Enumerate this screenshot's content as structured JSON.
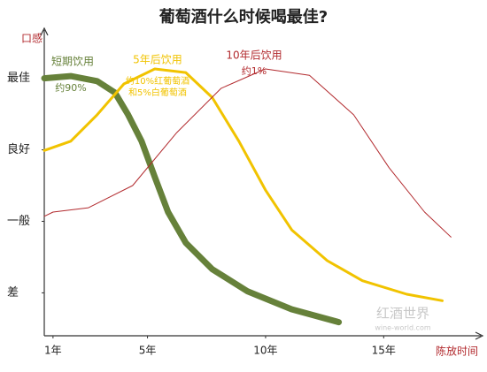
{
  "chart_data": {
    "type": "line",
    "title": "葡萄酒什么时候喝最佳?",
    "y_label": "口感",
    "x_label": "陈放时间",
    "watermark": "红酒世界",
    "watermark_url": "wine-world.com",
    "xlim": [
      0.63,
      19
    ],
    "xticks": [
      {
        "value": 1,
        "label": "1年"
      },
      {
        "value": 5,
        "label": "5年"
      },
      {
        "value": 10,
        "label": "10年"
      },
      {
        "value": 15,
        "label": "15年"
      }
    ],
    "ylim": [
      0.4,
      4.6
    ],
    "yticks": [
      {
        "value": 1,
        "label": "差"
      },
      {
        "value": 2,
        "label": "一般"
      },
      {
        "value": 3,
        "label": "良好"
      },
      {
        "value": 4,
        "label": "最佳"
      }
    ],
    "series": [
      {
        "name": "短期饮用",
        "notes": [
          "约90%"
        ],
        "color": "#66813a",
        "x": [
          0.63,
          1.75,
          2.87,
          3.62,
          4.18,
          4.75,
          5.31,
          5.87,
          6.62,
          7.74,
          9.24,
          11.1,
          13.1
        ],
        "values": [
          4.0,
          4.03,
          3.96,
          3.8,
          3.49,
          3.12,
          2.62,
          2.13,
          1.7,
          1.33,
          1.02,
          0.77,
          0.59
        ]
      },
      {
        "name": "5年后饮用",
        "notes": [
          "约10%红葡萄酒",
          "和5%白葡萄酒"
        ],
        "color": "#f1c300",
        "x": [
          0.63,
          1.75,
          2.87,
          4.0,
          5.31,
          6.62,
          7.74,
          8.87,
          9.99,
          11.11,
          12.61,
          14.1,
          15.98,
          17.48
        ],
        "values": [
          2.99,
          3.12,
          3.49,
          3.92,
          4.13,
          4.08,
          3.73,
          3.12,
          2.44,
          1.88,
          1.45,
          1.17,
          0.98,
          0.89
        ]
      },
      {
        "name": "10年后饮用",
        "notes": [
          "约1%"
        ],
        "color": "#b22a2e",
        "x": [
          0.63,
          1.0,
          2.5,
          4.37,
          6.24,
          8.12,
          9.99,
          11.86,
          13.73,
          15.23,
          16.73,
          17.85
        ],
        "values": [
          2.07,
          2.13,
          2.19,
          2.5,
          3.24,
          3.86,
          4.13,
          4.04,
          3.49,
          2.75,
          2.13,
          1.78
        ]
      }
    ]
  }
}
